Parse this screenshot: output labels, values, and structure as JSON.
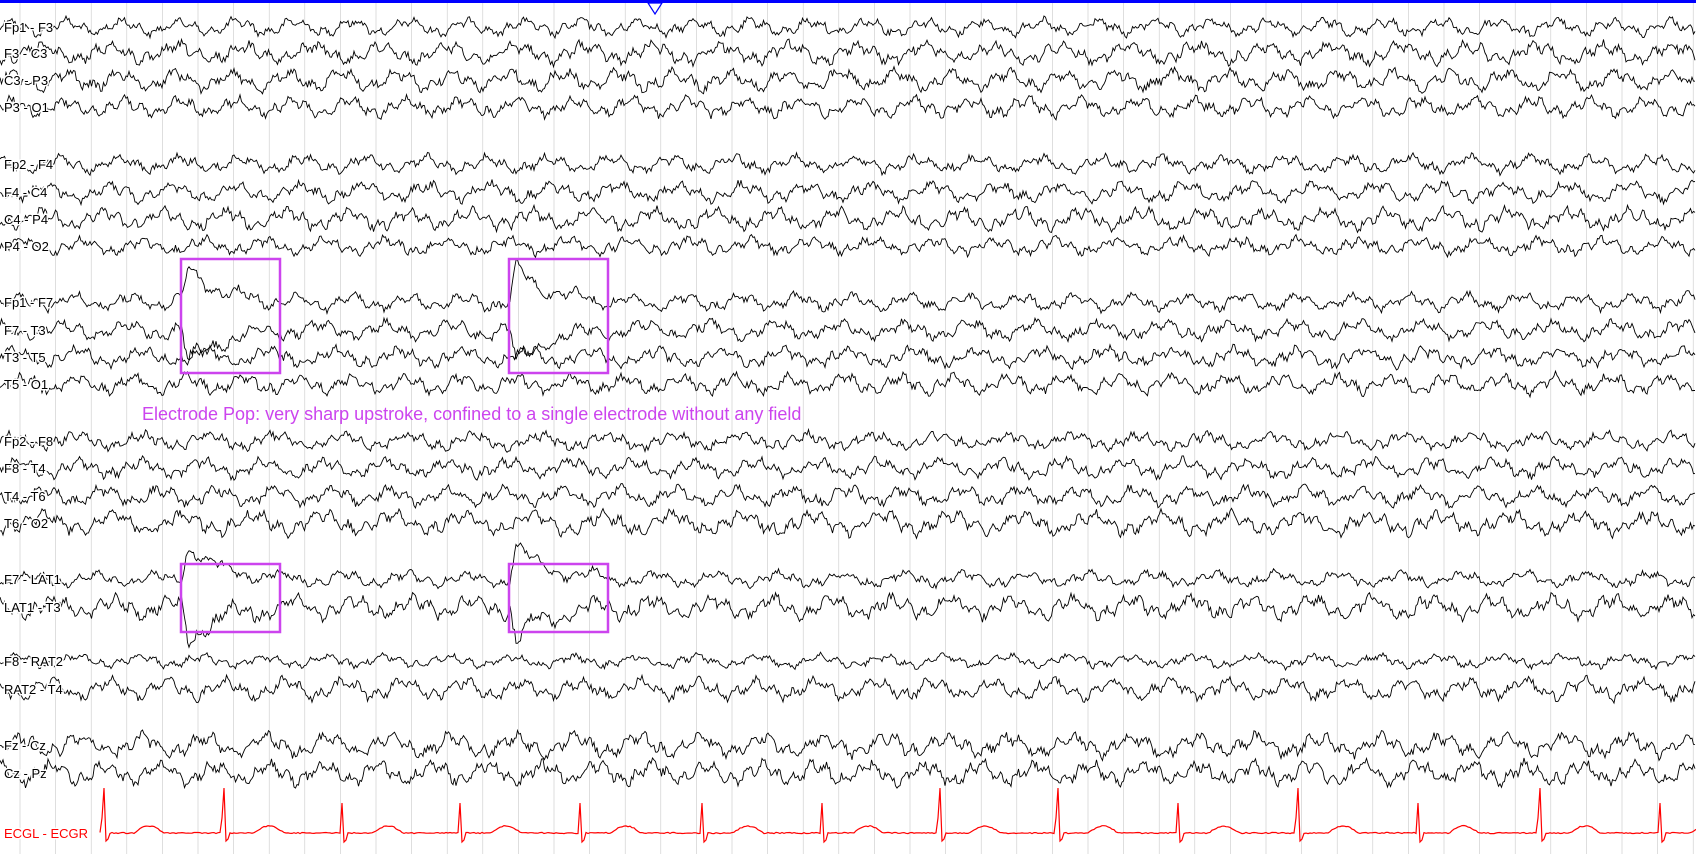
{
  "viewer": {
    "accent_color": "#0000ff",
    "marker_icon": "triangle-down-icon",
    "trace_color": "#000000",
    "grid_color": "#c8c8c8",
    "annotation_color": "#cc44ee",
    "ecg_color": "#ff0000"
  },
  "channels": [
    {
      "label": "Fp1 - F3"
    },
    {
      "label": "F3 - C3"
    },
    {
      "label": "C3 - P3"
    },
    {
      "label": "P3 - O1"
    },
    {
      "label": "Fp2 - F4"
    },
    {
      "label": "F4 - C4"
    },
    {
      "label": "C4 - P4"
    },
    {
      "label": "P4 - O2"
    },
    {
      "label": "Fp1 - F7"
    },
    {
      "label": "F7 - T3"
    },
    {
      "label": "T3 - T5"
    },
    {
      "label": "T5 - O1"
    },
    {
      "label": "Fp2 - F8"
    },
    {
      "label": "F8 - T4"
    },
    {
      "label": "T4 - T6"
    },
    {
      "label": "T6 - O2"
    },
    {
      "label": "F7 - LAT1"
    },
    {
      "label": "LAT1 - T3"
    },
    {
      "label": "F8 - RAT2"
    },
    {
      "label": "RAT2 - T4"
    },
    {
      "label": "Fz - Cz"
    },
    {
      "label": "Cz - Pz"
    },
    {
      "label": "ECGL - ECGR"
    }
  ],
  "annotation": {
    "text": "Electrode Pop: very sharp upstroke, confined to a single electrode without any field"
  }
}
